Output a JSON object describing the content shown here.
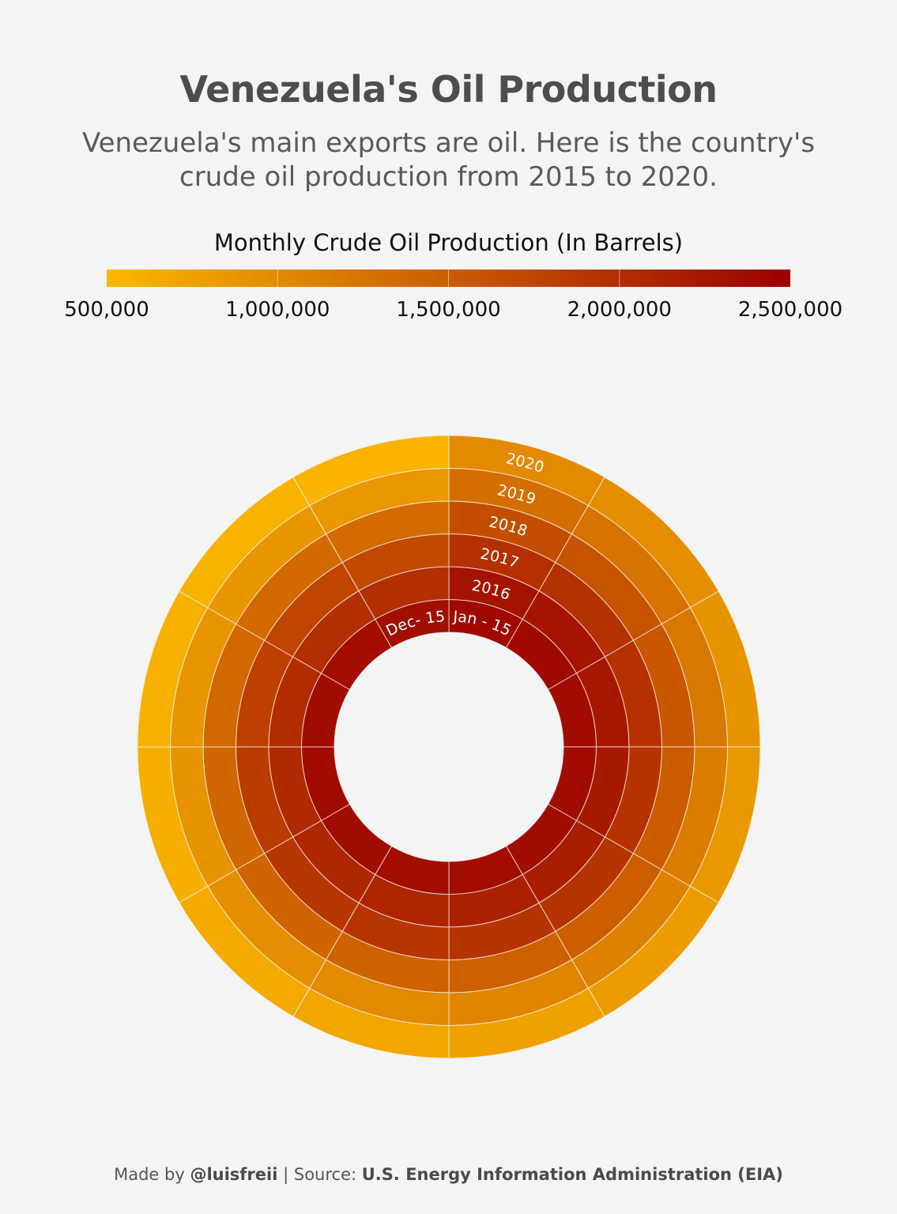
{
  "title": "Venezuela's Oil Production",
  "subtitle": "Venezuela's main exports are oil. Here is the country's crude oil production from 2015 to 2020.",
  "legend": {
    "title": "Monthly Crude Oil Production (In Barrels)",
    "ticks": [
      {
        "value": 500000,
        "label": "500,000"
      },
      {
        "value": 1000000,
        "label": "1,000,000"
      },
      {
        "value": 1500000,
        "label": "1,500,000"
      },
      {
        "value": 2000000,
        "label": "2,000,000"
      },
      {
        "value": 2500000,
        "label": "2,500,000"
      }
    ],
    "min": 500000,
    "max": 2500000,
    "colors": [
      "#fbb800",
      "#9b0000"
    ]
  },
  "footer": {
    "made_by_prefix": "Made by",
    "author": "@luisfreii",
    "source_prefix": "| Source:",
    "source": "U.S. Energy Information Administration (EIA)"
  },
  "chart_data": {
    "type": "heatmap",
    "layout": "radial",
    "title": "Venezuela's Oil Production",
    "ring_labels": [
      "2016",
      "2017",
      "2018",
      "2019",
      "2020"
    ],
    "sector_labels": [
      "Jan - 15",
      "Dec- 15"
    ],
    "rows": [
      {
        "year": "2015",
        "values": [
          2400000,
          2400000,
          2380000,
          2380000,
          2370000,
          2360000,
          2360000,
          2370000,
          2380000,
          2370000,
          2360000,
          2350000
        ]
      },
      {
        "year": "2016",
        "values": [
          2300000,
          2280000,
          2250000,
          2220000,
          2180000,
          2150000,
          2100000,
          2080000,
          2050000,
          2020000,
          2000000,
          1990000
        ]
      },
      {
        "year": "2017",
        "values": [
          1980000,
          1970000,
          1960000,
          1950000,
          1940000,
          1930000,
          1920000,
          1900000,
          1850000,
          1800000,
          1750000,
          1700000
        ]
      },
      {
        "year": "2018",
        "values": [
          1650000,
          1600000,
          1550000,
          1500000,
          1480000,
          1450000,
          1420000,
          1400000,
          1380000,
          1370000,
          1350000,
          1340000
        ]
      },
      {
        "year": "2019",
        "values": [
          1300000,
          1250000,
          1200000,
          1150000,
          1100000,
          1050000,
          1000000,
          950000,
          900000,
          880000,
          870000,
          860000
        ]
      },
      {
        "year": "2020",
        "values": [
          1000000,
          950000,
          900000,
          850000,
          800000,
          750000,
          700000,
          650000,
          600000,
          580000,
          560000,
          550000
        ]
      }
    ]
  }
}
